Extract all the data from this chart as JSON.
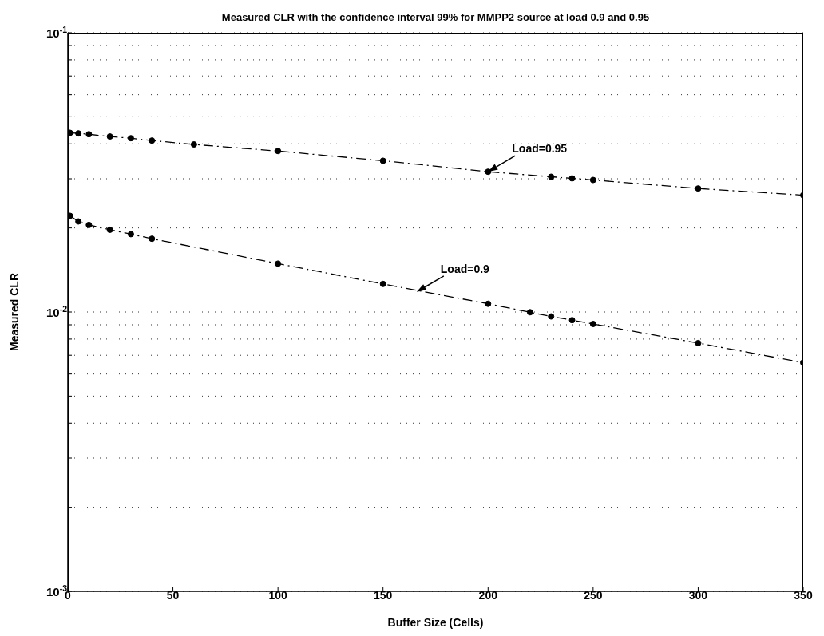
{
  "chart_data": {
    "type": "line",
    "title": "Measured CLR with the confidence interval 99% for MMPP2 source at load 0.9 and 0.95",
    "xlabel": "Buffer Size (Cells)",
    "ylabel": "Measured CLR",
    "series": [
      {
        "color": "#000000",
        "x": [
          1,
          5,
          10,
          20,
          30,
          40,
          60,
          100,
          150,
          200,
          230,
          240,
          250,
          300,
          350
        ],
        "values": [
          0.0438,
          0.0436,
          0.0433,
          0.0425,
          0.0419,
          0.0411,
          0.0398,
          0.0377,
          0.0348,
          0.0318,
          0.0305,
          0.0301,
          0.0297,
          0.0277,
          0.0262
        ]
      },
      {
        "color": "#000000",
        "x": [
          1,
          5,
          10,
          20,
          30,
          40,
          100,
          150,
          200,
          220,
          230,
          240,
          250,
          300,
          350
        ],
        "values": [
          0.0221,
          0.0211,
          0.0205,
          0.0197,
          0.019,
          0.0183,
          0.0149,
          0.0126,
          0.0107,
          0.00998,
          0.00964,
          0.00935,
          0.00906,
          0.00774,
          0.00659
        ]
      }
    ],
    "annotations": [
      {
        "text": "Load=0.95",
        "x": 200,
        "y": 0.0318
      },
      {
        "text": "Load=0.9",
        "x": 166,
        "y": 0.0118
      }
    ],
    "log": "y",
    "grid": "y",
    "marker": "circle",
    "line_style": "dashed",
    "xlim": [
      0,
      350
    ],
    "xticks": [
      0,
      50,
      100,
      150,
      200,
      250,
      300,
      350
    ],
    "ylim": [
      0.001,
      0.1
    ],
    "yticks": [
      {
        "value": 0.001,
        "label": "10$^{-3}$"
      },
      {
        "value": 0.002,
        "label": null
      },
      {
        "value": 0.003,
        "label": null
      },
      {
        "value": 0.004,
        "label": null
      },
      {
        "value": 0.005,
        "label": null
      },
      {
        "value": 0.006,
        "label": null
      },
      {
        "value": 0.007,
        "label": null
      },
      {
        "value": 0.008,
        "label": null
      },
      {
        "value": 0.009,
        "label": null
      },
      {
        "value": 0.01,
        "label": "10$^{-2}$"
      },
      {
        "value": 0.02,
        "label": null
      },
      {
        "value": 0.03,
        "label": null
      },
      {
        "value": 0.04,
        "label": null
      },
      {
        "value": 0.05,
        "label": null
      },
      {
        "value": 0.06,
        "label": null
      },
      {
        "value": 0.07,
        "label": null
      },
      {
        "value": 0.08,
        "label": null
      },
      {
        "value": 0.09,
        "label": null
      },
      {
        "value": 0.1,
        "label": "10$^{-1}$"
      }
    ]
  }
}
